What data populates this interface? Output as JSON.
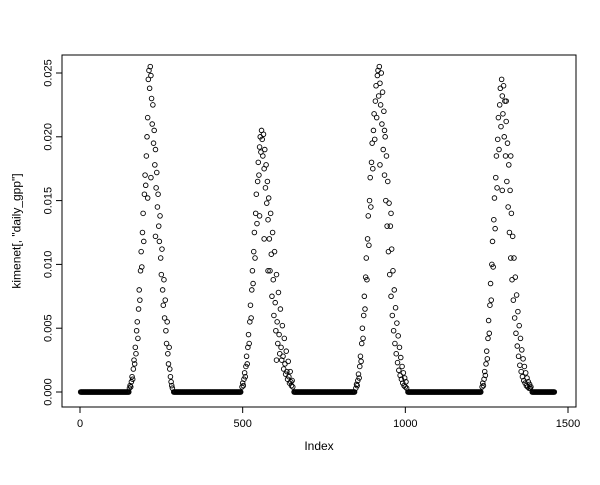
{
  "window": {
    "background": "#ffffff"
  },
  "chart_data": {
    "type": "scatter",
    "title": "",
    "xlabel": "Index",
    "ylabel": "kimenet[, \"daily_gpp\"]",
    "xlim": [
      0,
      1500
    ],
    "ylim": [
      0,
      0.025
    ],
    "x_ticks": [
      0,
      500,
      1000,
      1500
    ],
    "x_tick_labels": [
      "0",
      "500",
      "1000",
      "1500"
    ],
    "y_ticks": [
      0.0,
      0.005,
      0.01,
      0.015,
      0.02,
      0.025
    ],
    "y_tick_labels": [
      "0.000",
      "0.005",
      "0.010",
      "0.015",
      "0.020",
      "0.025"
    ],
    "grid": "off",
    "legend": "none",
    "marker": "open-circle",
    "point_color": "#000000",
    "background": "#ffffff",
    "zero_runs": [
      [
        2,
        150
      ],
      [
        288,
        494
      ],
      [
        658,
        845
      ],
      [
        1008,
        1232
      ],
      [
        1390,
        1458
      ]
    ],
    "zero_step": 2,
    "zero_value": 0.0,
    "points": [
      [
        152,
        0.0003
      ],
      [
        154,
        0.0005
      ],
      [
        156,
        0.0004
      ],
      [
        158,
        0.0008
      ],
      [
        160,
        0.0012
      ],
      [
        162,
        0.001
      ],
      [
        164,
        0.0018
      ],
      [
        166,
        0.0025
      ],
      [
        168,
        0.0022
      ],
      [
        170,
        0.0035
      ],
      [
        172,
        0.003
      ],
      [
        174,
        0.0048
      ],
      [
        176,
        0.0055
      ],
      [
        178,
        0.0042
      ],
      [
        180,
        0.0065
      ],
      [
        182,
        0.008
      ],
      [
        184,
        0.0072
      ],
      [
        186,
        0.0095
      ],
      [
        188,
        0.011
      ],
      [
        190,
        0.0098
      ],
      [
        192,
        0.0125
      ],
      [
        194,
        0.014
      ],
      [
        196,
        0.0118
      ],
      [
        198,
        0.0155
      ],
      [
        200,
        0.017
      ],
      [
        202,
        0.0162
      ],
      [
        204,
        0.0185
      ],
      [
        206,
        0.02
      ],
      [
        208,
        0.0215
      ],
      [
        210,
        0.0245
      ],
      [
        212,
        0.0252
      ],
      [
        214,
        0.0238
      ],
      [
        216,
        0.0255
      ],
      [
        218,
        0.0248
      ],
      [
        220,
        0.023
      ],
      [
        222,
        0.021
      ],
      [
        224,
        0.0225
      ],
      [
        226,
        0.0195
      ],
      [
        228,
        0.0205
      ],
      [
        230,
        0.0178
      ],
      [
        232,
        0.019
      ],
      [
        234,
        0.016
      ],
      [
        236,
        0.0172
      ],
      [
        238,
        0.0145
      ],
      [
        240,
        0.0155
      ],
      [
        242,
        0.013
      ],
      [
        244,
        0.0118
      ],
      [
        246,
        0.0138
      ],
      [
        248,
        0.0105
      ],
      [
        250,
        0.0092
      ],
      [
        252,
        0.0112
      ],
      [
        254,
        0.008
      ],
      [
        256,
        0.0068
      ],
      [
        258,
        0.0088
      ],
      [
        260,
        0.0058
      ],
      [
        262,
        0.0072
      ],
      [
        264,
        0.0048
      ],
      [
        266,
        0.0038
      ],
      [
        268,
        0.0055
      ],
      [
        270,
        0.003
      ],
      [
        272,
        0.0022
      ],
      [
        274,
        0.0035
      ],
      [
        276,
        0.0018
      ],
      [
        278,
        0.0012
      ],
      [
        280,
        0.0008
      ],
      [
        282,
        0.0005
      ],
      [
        284,
        0.0003
      ],
      [
        498,
        0.0004
      ],
      [
        500,
        0.0007
      ],
      [
        502,
        0.0005
      ],
      [
        504,
        0.001
      ],
      [
        506,
        0.0015
      ],
      [
        508,
        0.0012
      ],
      [
        510,
        0.002
      ],
      [
        512,
        0.0028
      ],
      [
        514,
        0.0022
      ],
      [
        516,
        0.0035
      ],
      [
        518,
        0.0045
      ],
      [
        520,
        0.0038
      ],
      [
        522,
        0.0055
      ],
      [
        524,
        0.0068
      ],
      [
        526,
        0.0058
      ],
      [
        528,
        0.008
      ],
      [
        530,
        0.0095
      ],
      [
        532,
        0.0085
      ],
      [
        534,
        0.011
      ],
      [
        536,
        0.0125
      ],
      [
        538,
        0.0105
      ],
      [
        540,
        0.014
      ],
      [
        542,
        0.0155
      ],
      [
        544,
        0.0132
      ],
      [
        546,
        0.0165
      ],
      [
        548,
        0.018
      ],
      [
        550,
        0.017
      ],
      [
        552,
        0.0192
      ],
      [
        554,
        0.02
      ],
      [
        556,
        0.0188
      ],
      [
        558,
        0.0205
      ],
      [
        560,
        0.0198
      ],
      [
        562,
        0.0185
      ],
      [
        564,
        0.0202
      ],
      [
        566,
        0.0175
      ],
      [
        568,
        0.019
      ],
      [
        570,
        0.016
      ],
      [
        572,
        0.0178
      ],
      [
        574,
        0.0148
      ],
      [
        576,
        0.0165
      ],
      [
        578,
        0.0135
      ],
      [
        580,
        0.0152
      ],
      [
        582,
        0.012
      ],
      [
        584,
        0.0095
      ],
      [
        586,
        0.014
      ],
      [
        588,
        0.0108
      ],
      [
        590,
        0.0075
      ],
      [
        592,
        0.0125
      ],
      [
        594,
        0.0088
      ],
      [
        596,
        0.006
      ],
      [
        598,
        0.011
      ],
      [
        600,
        0.007
      ],
      [
        602,
        0.0048
      ],
      [
        604,
        0.0092
      ],
      [
        606,
        0.0055
      ],
      [
        608,
        0.0038
      ],
      [
        610,
        0.0078
      ],
      [
        612,
        0.0045
      ],
      [
        614,
        0.003
      ],
      [
        616,
        0.0065
      ],
      [
        618,
        0.0035
      ],
      [
        620,
        0.0025
      ],
      [
        622,
        0.0052
      ],
      [
        624,
        0.0028
      ],
      [
        626,
        0.0018
      ],
      [
        628,
        0.0042
      ],
      [
        630,
        0.0022
      ],
      [
        632,
        0.0014
      ],
      [
        634,
        0.0032
      ],
      [
        636,
        0.0016
      ],
      [
        638,
        0.001
      ],
      [
        640,
        0.0024
      ],
      [
        642,
        0.0012
      ],
      [
        644,
        0.0007
      ],
      [
        646,
        0.0016
      ],
      [
        648,
        0.0008
      ],
      [
        650,
        0.0005
      ],
      [
        652,
        0.0009
      ],
      [
        654,
        0.0004
      ],
      [
        848,
        0.0003
      ],
      [
        850,
        0.0006
      ],
      [
        852,
        0.0005
      ],
      [
        854,
        0.0009
      ],
      [
        856,
        0.0014
      ],
      [
        858,
        0.0011
      ],
      [
        860,
        0.002
      ],
      [
        862,
        0.0028
      ],
      [
        864,
        0.0024
      ],
      [
        866,
        0.0038
      ],
      [
        868,
        0.005
      ],
      [
        870,
        0.0042
      ],
      [
        872,
        0.006
      ],
      [
        874,
        0.0075
      ],
      [
        876,
        0.0065
      ],
      [
        878,
        0.009
      ],
      [
        880,
        0.0105
      ],
      [
        882,
        0.0088
      ],
      [
        884,
        0.012
      ],
      [
        886,
        0.0138
      ],
      [
        888,
        0.0115
      ],
      [
        890,
        0.015
      ],
      [
        892,
        0.0168
      ],
      [
        894,
        0.0145
      ],
      [
        896,
        0.018
      ],
      [
        898,
        0.0195
      ],
      [
        900,
        0.0175
      ],
      [
        902,
        0.0205
      ],
      [
        904,
        0.0218
      ],
      [
        906,
        0.0198
      ],
      [
        908,
        0.0228
      ],
      [
        910,
        0.024
      ],
      [
        912,
        0.0215
      ],
      [
        914,
        0.0248
      ],
      [
        916,
        0.0252
      ],
      [
        918,
        0.0232
      ],
      [
        920,
        0.0255
      ],
      [
        922,
        0.0242
      ],
      [
        924,
        0.0225
      ],
      [
        926,
        0.025
      ],
      [
        928,
        0.021
      ],
      [
        930,
        0.0235
      ],
      [
        932,
        0.019
      ],
      [
        934,
        0.022
      ],
      [
        936,
        0.017
      ],
      [
        938,
        0.02
      ],
      [
        940,
        0.015
      ],
      [
        942,
        0.0185
      ],
      [
        944,
        0.013
      ],
      [
        946,
        0.0165
      ],
      [
        948,
        0.011
      ],
      [
        950,
        0.0148
      ],
      [
        952,
        0.0092
      ],
      [
        954,
        0.013
      ],
      [
        956,
        0.0075
      ],
      [
        958,
        0.0112
      ],
      [
        960,
        0.006
      ],
      [
        962,
        0.0095
      ],
      [
        964,
        0.0048
      ],
      [
        966,
        0.008
      ],
      [
        968,
        0.0038
      ],
      [
        970,
        0.0066
      ],
      [
        972,
        0.003
      ],
      [
        974,
        0.0054
      ],
      [
        976,
        0.0023
      ],
      [
        978,
        0.0044
      ],
      [
        980,
        0.0017
      ],
      [
        982,
        0.0035
      ],
      [
        984,
        0.0013
      ],
      [
        986,
        0.0027
      ],
      [
        988,
        0.001
      ],
      [
        990,
        0.002
      ],
      [
        992,
        0.0007
      ],
      [
        994,
        0.0015
      ],
      [
        996,
        0.0005
      ],
      [
        998,
        0.0011
      ],
      [
        1000,
        0.0004
      ],
      [
        1002,
        0.0008
      ],
      [
        1004,
        0.0003
      ],
      [
        1236,
        0.0004
      ],
      [
        1238,
        0.0007
      ],
      [
        1240,
        0.0005
      ],
      [
        1242,
        0.001
      ],
      [
        1244,
        0.0016
      ],
      [
        1246,
        0.0013
      ],
      [
        1248,
        0.0022
      ],
      [
        1250,
        0.0032
      ],
      [
        1252,
        0.0026
      ],
      [
        1254,
        0.0042
      ],
      [
        1256,
        0.0056
      ],
      [
        1258,
        0.0046
      ],
      [
        1260,
        0.0068
      ],
      [
        1262,
        0.0085
      ],
      [
        1264,
        0.0072
      ],
      [
        1266,
        0.01
      ],
      [
        1268,
        0.0118
      ],
      [
        1270,
        0.0098
      ],
      [
        1272,
        0.0135
      ],
      [
        1274,
        0.0152
      ],
      [
        1276,
        0.0128
      ],
      [
        1278,
        0.0168
      ],
      [
        1280,
        0.0185
      ],
      [
        1282,
        0.016
      ],
      [
        1284,
        0.0198
      ],
      [
        1286,
        0.0215
      ],
      [
        1288,
        0.019
      ],
      [
        1290,
        0.0225
      ],
      [
        1292,
        0.0238
      ],
      [
        1294,
        0.0208
      ],
      [
        1296,
        0.0245
      ],
      [
        1298,
        0.0232
      ],
      [
        1300,
        0.0218
      ],
      [
        1302,
        0.024
      ],
      [
        1304,
        0.02
      ],
      [
        1306,
        0.0228
      ],
      [
        1308,
        0.0185
      ],
      [
        1310,
        0.0212
      ],
      [
        1312,
        0.0165
      ],
      [
        1314,
        0.0195
      ],
      [
        1316,
        0.0145
      ],
      [
        1318,
        0.0178
      ],
      [
        1320,
        0.0125
      ],
      [
        1322,
        0.0158
      ],
      [
        1324,
        0.0105
      ],
      [
        1326,
        0.014
      ],
      [
        1328,
        0.0088
      ],
      [
        1330,
        0.0122
      ],
      [
        1332,
        0.0072
      ],
      [
        1334,
        0.0105
      ],
      [
        1336,
        0.0058
      ],
      [
        1338,
        0.009
      ],
      [
        1340,
        0.0046
      ],
      [
        1342,
        0.0076
      ],
      [
        1344,
        0.0036
      ],
      [
        1346,
        0.0063
      ],
      [
        1348,
        0.0028
      ],
      [
        1350,
        0.0052
      ],
      [
        1352,
        0.0021
      ],
      [
        1354,
        0.0042
      ],
      [
        1356,
        0.0016
      ],
      [
        1358,
        0.0033
      ],
      [
        1360,
        0.0012
      ],
      [
        1362,
        0.0026
      ],
      [
        1364,
        0.0009
      ],
      [
        1366,
        0.002
      ],
      [
        1368,
        0.0007
      ],
      [
        1370,
        0.0015
      ],
      [
        1372,
        0.0005
      ],
      [
        1374,
        0.0011
      ],
      [
        1376,
        0.0004
      ],
      [
        1378,
        0.0008
      ],
      [
        1380,
        0.0003
      ],
      [
        1382,
        0.0006
      ],
      [
        1384,
        0.0003
      ],
      [
        1386,
        0.0004
      ],
      [
        208,
        0.0152
      ],
      [
        218,
        0.0168
      ],
      [
        232,
        0.0122
      ],
      [
        552,
        0.0138
      ],
      [
        566,
        0.012
      ],
      [
        578,
        0.0095
      ],
      [
        922,
        0.0178
      ],
      [
        936,
        0.0205
      ],
      [
        1298,
        0.0158
      ],
      [
        1310,
        0.0228
      ],
      [
        604,
        0.0025
      ],
      [
        956,
        0.014
      ],
      [
        1324,
        0.0185
      ]
    ]
  }
}
